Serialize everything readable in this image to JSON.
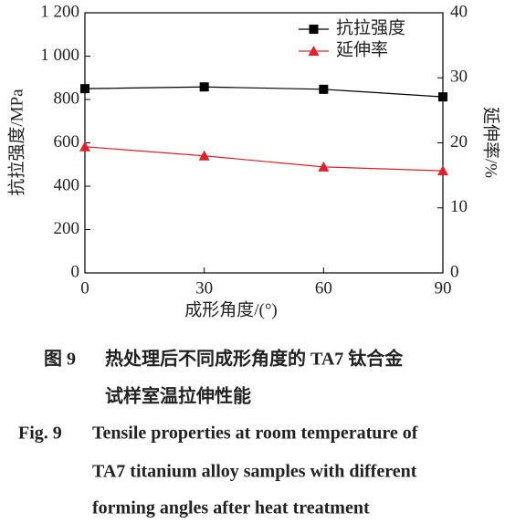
{
  "chart_data": {
    "type": "line",
    "x_label": "成形角度/(°)",
    "y_label": "抗拉强度/MPa",
    "y2_label": "延伸率/%",
    "x": [
      0,
      30,
      60,
      90
    ],
    "xlim": [
      0,
      90
    ],
    "xticks": [
      0,
      30,
      60,
      90
    ],
    "ylim": [
      0,
      1200
    ],
    "yticks": [
      0,
      200,
      400,
      600,
      800,
      {
        "value": 1000,
        "label": "1 000"
      },
      {
        "value": 1200,
        "label": "1 200"
      }
    ],
    "y2lim": [
      0,
      40
    ],
    "y2ticks": [
      0,
      10,
      20,
      30,
      40
    ],
    "legend": "upper right",
    "series": [
      {
        "name": "抗拉强度",
        "color": "#000000",
        "marker": "square",
        "values": [
          850,
          858,
          847,
          812
        ]
      },
      {
        "name": "延伸率",
        "color": "#e0202a",
        "marker": "triangle",
        "axis": "y2",
        "values": [
          19.4,
          18.0,
          16.3,
          15.7
        ]
      }
    ]
  },
  "caption": {
    "cn_label": "图 9",
    "cn_lines": [
      "热处理后不同成形角度的 TA7 钛合金",
      "试样室温拉伸性能"
    ],
    "en_label": "Fig. 9",
    "en_lines": [
      "Tensile properties at room temperature of",
      "TA7 titanium alloy samples with different",
      "forming angles after heat treatment"
    ]
  }
}
